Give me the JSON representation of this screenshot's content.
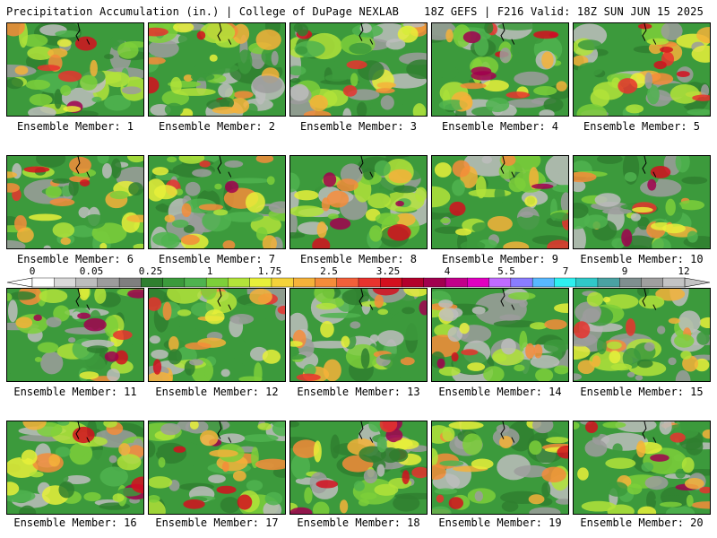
{
  "header": {
    "title_left": "Precipitation Accumulation (in.) | College of DuPage NEXLAB",
    "title_right": "18Z GEFS | F216 Valid: 18Z SUN JUN 15 2025"
  },
  "colorbar": {
    "labels": [
      "0",
      "0.05",
      "0.25",
      "1",
      "1.75",
      "2.5",
      "3.25",
      "4",
      "5.5",
      "7",
      "9",
      "12"
    ],
    "colors": [
      "#ffffff",
      "#d9d9d9",
      "#bdbdbd",
      "#9c9c9c",
      "#7f7f7f",
      "#2f7f2f",
      "#3c9a3c",
      "#4fb34f",
      "#7dcf3a",
      "#b2e33a",
      "#e8f03a",
      "#f5d33a",
      "#f5b23a",
      "#f58c3a",
      "#f2603a",
      "#e8332e",
      "#d40f1e",
      "#b3002b",
      "#a1004f",
      "#c2008a",
      "#e000c0",
      "#c06bff",
      "#8a7dff",
      "#58b8ff",
      "#2ef0f0",
      "#30c8c8",
      "#4aa2a2",
      "#7f8f8f",
      "#9f9f9f",
      "#c4c4c4"
    ]
  },
  "members": [
    {
      "label": "Ensemble Member: 1"
    },
    {
      "label": "Ensemble Member: 2"
    },
    {
      "label": "Ensemble Member: 3"
    },
    {
      "label": "Ensemble Member: 4"
    },
    {
      "label": "Ensemble Member: 5"
    },
    {
      "label": "Ensemble Member: 6"
    },
    {
      "label": "Ensemble Member: 7"
    },
    {
      "label": "Ensemble Member: 8"
    },
    {
      "label": "Ensemble Member: 9"
    },
    {
      "label": "Ensemble Member: 10"
    },
    {
      "label": "Ensemble Member: 11"
    },
    {
      "label": "Ensemble Member: 12"
    },
    {
      "label": "Ensemble Member: 13"
    },
    {
      "label": "Ensemble Member: 14"
    },
    {
      "label": "Ensemble Member: 15"
    },
    {
      "label": "Ensemble Member: 16"
    },
    {
      "label": "Ensemble Member: 17"
    },
    {
      "label": "Ensemble Member: 18"
    },
    {
      "label": "Ensemble Member: 19"
    },
    {
      "label": "Ensemble Member: 20"
    }
  ]
}
